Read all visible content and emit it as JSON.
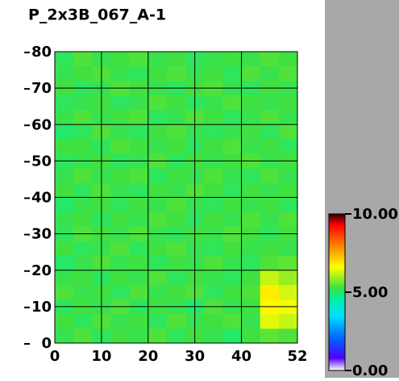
{
  "chart_data": {
    "type": "heatmap",
    "title": "P_2x3B_067_A-1",
    "xlim": [
      0,
      52
    ],
    "xticks": [
      0,
      10,
      20,
      30,
      40,
      52
    ],
    "ylim": [
      0,
      80
    ],
    "yticks": [
      0,
      10,
      20,
      30,
      40,
      50,
      60,
      70,
      80
    ],
    "grid": true,
    "xbins": [
      0,
      4,
      8,
      12,
      16,
      20,
      24,
      28,
      32,
      36,
      40,
      44,
      48,
      52
    ],
    "ybins": [
      0,
      4,
      8,
      12,
      16,
      20,
      24,
      28,
      32,
      36,
      40,
      44,
      48,
      52,
      56,
      60,
      64,
      68,
      72,
      76,
      80
    ],
    "values": [
      [
        5.2,
        5.4,
        5.1,
        5.3,
        5.2,
        5.4,
        5.1,
        5.3,
        5.2,
        5.0,
        5.3,
        5.5,
        5.4
      ],
      [
        5.3,
        5.1,
        5.4,
        5.2,
        5.3,
        5.1,
        5.4,
        5.2,
        5.3,
        5.4,
        5.2,
        6.4,
        6.2
      ],
      [
        5.1,
        5.3,
        5.2,
        5.4,
        5.1,
        5.3,
        5.2,
        5.0,
        5.4,
        5.2,
        5.3,
        6.7,
        6.5
      ],
      [
        5.4,
        5.2,
        5.3,
        5.1,
        5.4,
        5.2,
        5.3,
        5.4,
        5.1,
        5.3,
        5.4,
        6.8,
        6.3
      ],
      [
        5.2,
        5.3,
        5.1,
        5.3,
        5.2,
        5.4,
        5.1,
        5.3,
        5.2,
        5.1,
        5.3,
        6.2,
        5.9
      ],
      [
        5.0,
        5.2,
        5.4,
        5.2,
        5.3,
        5.1,
        5.3,
        5.2,
        5.4,
        5.2,
        5.1,
        5.4,
        5.5
      ],
      [
        5.3,
        5.1,
        5.2,
        5.4,
        5.1,
        5.3,
        5.4,
        5.2,
        5.1,
        5.3,
        5.2,
        5.3,
        5.2
      ],
      [
        5.1,
        5.4,
        5.3,
        5.2,
        5.4,
        5.2,
        5.1,
        5.3,
        5.2,
        5.4,
        5.3,
        5.1,
        5.3
      ],
      [
        5.2,
        5.3,
        5.1,
        5.3,
        5.2,
        5.4,
        5.3,
        5.1,
        5.3,
        5.2,
        5.4,
        5.2,
        5.4
      ],
      [
        5.0,
        5.2,
        5.3,
        5.1,
        5.3,
        5.2,
        5.4,
        5.2,
        5.1,
        5.3,
        5.2,
        5.3,
        5.1
      ],
      [
        5.3,
        5.1,
        5.4,
        5.2,
        5.1,
        5.3,
        5.2,
        5.4,
        5.3,
        5.1,
        5.3,
        5.2,
        5.3
      ],
      [
        5.2,
        5.4,
        5.2,
        5.3,
        5.4,
        5.1,
        5.3,
        5.2,
        5.4,
        5.2,
        5.1,
        5.4,
        5.2
      ],
      [
        5.1,
        5.2,
        5.3,
        5.1,
        5.2,
        5.4,
        5.1,
        5.3,
        5.2,
        5.3,
        5.4,
        5.2,
        5.3
      ],
      [
        5.3,
        5.3,
        5.1,
        5.4,
        5.3,
        5.2,
        5.3,
        5.1,
        5.3,
        5.4,
        5.2,
        5.3,
        5.1
      ],
      [
        5.0,
        5.1,
        5.4,
        5.2,
        5.1,
        5.3,
        5.4,
        5.2,
        5.1,
        5.2,
        5.3,
        5.1,
        5.4
      ],
      [
        5.2,
        5.4,
        5.2,
        5.3,
        5.4,
        5.1,
        5.2,
        5.4,
        5.3,
        5.1,
        5.2,
        5.4,
        5.2
      ],
      [
        5.1,
        5.2,
        5.3,
        5.1,
        5.2,
        5.4,
        5.3,
        5.1,
        5.2,
        5.4,
        5.3,
        5.2,
        5.3
      ],
      [
        5.3,
        5.1,
        5.2,
        5.4,
        5.3,
        5.2,
        5.1,
        5.3,
        5.4,
        5.2,
        5.1,
        5.3,
        5.2
      ],
      [
        5.2,
        5.3,
        5.4,
        5.2,
        5.1,
        5.3,
        5.4,
        5.2,
        5.3,
        5.1,
        5.4,
        5.2,
        5.4
      ],
      [
        5.1,
        5.4,
        5.2,
        5.3,
        5.4,
        5.2,
        5.3,
        5.1,
        5.2,
        5.3,
        5.2,
        5.4,
        5.3
      ]
    ],
    "clim": [
      0,
      10
    ],
    "cticks": [
      {
        "value": 0,
        "label": "0.00"
      },
      {
        "value": 5,
        "label": "5.00"
      },
      {
        "value": 10,
        "label": "10.00"
      }
    ],
    "colorscale": [
      [
        0,
        "#ffffff"
      ],
      [
        0.8,
        "#5000ff"
      ],
      [
        2,
        "#0060ff"
      ],
      [
        3.5,
        "#00e0ff"
      ],
      [
        4.6,
        "#00f0a0"
      ],
      [
        5.3,
        "#40e040"
      ],
      [
        6.6,
        "#ffff00"
      ],
      [
        8,
        "#ff8000"
      ],
      [
        9.3,
        "#ff0000"
      ],
      [
        10,
        "#300000"
      ]
    ]
  }
}
